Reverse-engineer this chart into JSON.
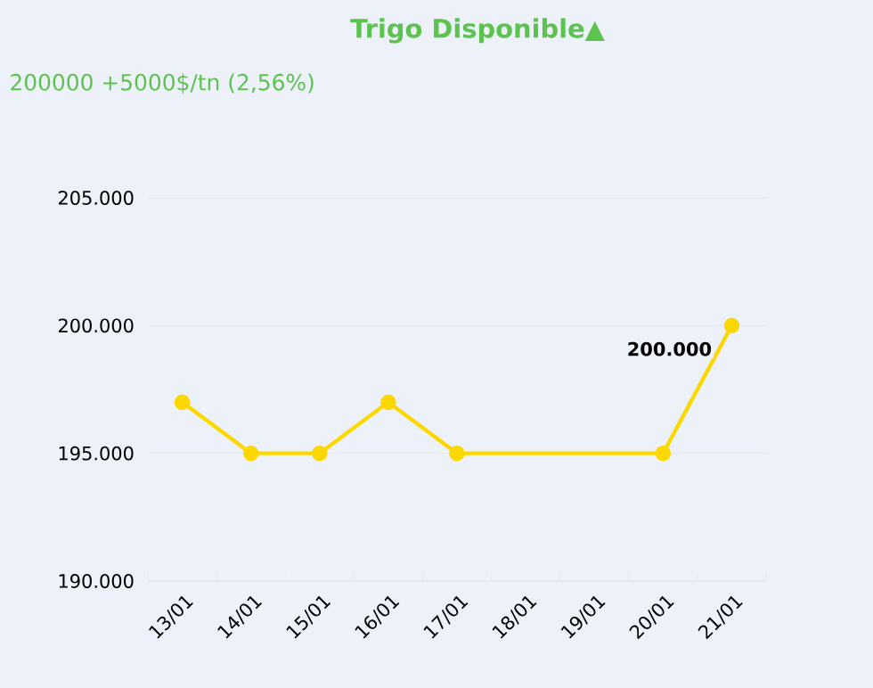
{
  "chart_data": {
    "type": "line",
    "title": "Trigo Disponible▲",
    "subtitle": "200000 +5000$/tn (2,56%)",
    "categories": [
      "13/01",
      "14/01",
      "15/01",
      "16/01",
      "17/01",
      "18/01",
      "19/01",
      "20/01",
      "21/01"
    ],
    "series": [
      {
        "color": "#fcd700",
        "values": [
          197000,
          195000,
          195000,
          197000,
          195000,
          null,
          null,
          195000,
          200000
        ],
        "value_labels": [
          null,
          null,
          null,
          null,
          null,
          null,
          null,
          null,
          "200.000"
        ]
      }
    ],
    "ylim": [
      190000,
      205000
    ],
    "yticks": [
      {
        "value": 190000,
        "label": "190.000"
      },
      {
        "value": 195000,
        "label": "195.000"
      },
      {
        "value": 200000,
        "label": "200.000"
      },
      {
        "value": 205000,
        "label": "205.000"
      }
    ],
    "grid": "y",
    "marker": "circle",
    "line_style": "solid"
  }
}
